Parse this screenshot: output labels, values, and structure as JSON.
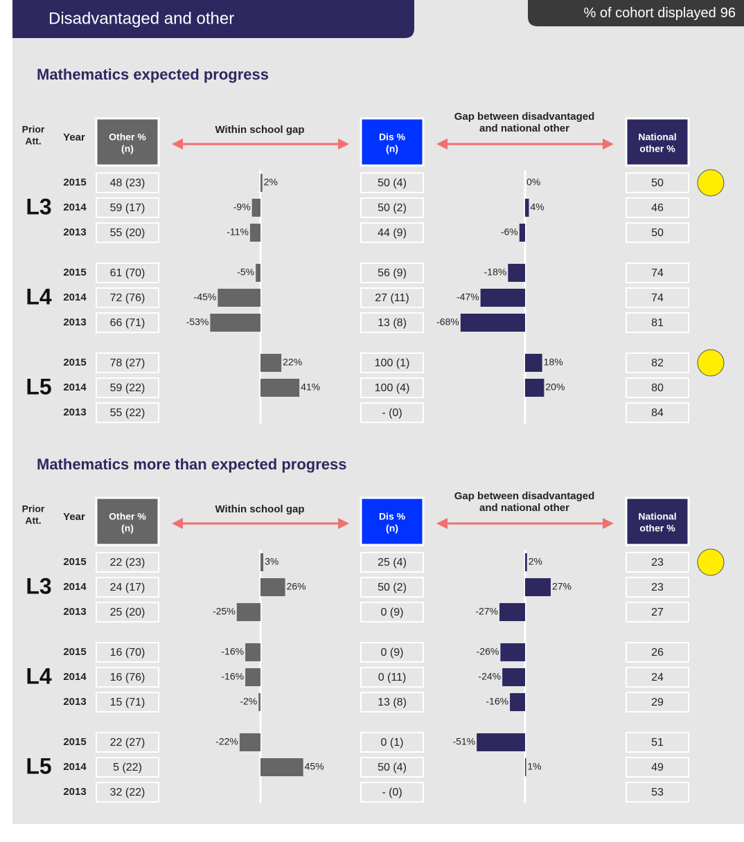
{
  "header": {
    "title": "Disadvantaged and other",
    "cohort_label": "% of cohort displayed",
    "cohort_value": 96
  },
  "columns": {
    "prior": [
      "Prior",
      "Att."
    ],
    "year": "Year",
    "other": [
      "Other %",
      "(n)"
    ],
    "within_gap": "Within school gap",
    "dis": [
      "Dis %",
      "(n)"
    ],
    "national_gap": [
      "Gap between disadvantaged",
      "and national other"
    ],
    "national": [
      "National",
      "other %"
    ]
  },
  "sections": [
    {
      "title": "Mathematics expected progress",
      "groups": [
        {
          "label": "L3",
          "rows": [
            {
              "year": 2015,
              "other": "48 (23)",
              "gap": 2,
              "gap_label": "2%",
              "dis": "50 (4)",
              "nat_gap": 0,
              "nat_gap_label": "0%",
              "national": 50,
              "flag": true
            },
            {
              "year": 2014,
              "other": "59 (17)",
              "gap": -9,
              "gap_label": "-9%",
              "dis": "50 (2)",
              "nat_gap": 4,
              "nat_gap_label": "4%",
              "national": 46
            },
            {
              "year": 2013,
              "other": "55 (20)",
              "gap": -11,
              "gap_label": "-11%",
              "dis": "44 (9)",
              "nat_gap": -6,
              "nat_gap_label": "-6%",
              "national": 50
            }
          ]
        },
        {
          "label": "L4",
          "rows": [
            {
              "year": 2015,
              "other": "61 (70)",
              "gap": -5,
              "gap_label": "-5%",
              "dis": "56 (9)",
              "nat_gap": -18,
              "nat_gap_label": "-18%",
              "national": 74
            },
            {
              "year": 2014,
              "other": "72 (76)",
              "gap": -45,
              "gap_label": "-45%",
              "dis": "27 (11)",
              "nat_gap": -47,
              "nat_gap_label": "-47%",
              "national": 74
            },
            {
              "year": 2013,
              "other": "66 (71)",
              "gap": -53,
              "gap_label": "-53%",
              "dis": "13 (8)",
              "nat_gap": -68,
              "nat_gap_label": "-68%",
              "national": 81
            }
          ]
        },
        {
          "label": "L5",
          "rows": [
            {
              "year": 2015,
              "other": "78 (27)",
              "gap": 22,
              "gap_label": "22%",
              "dis": "100 (1)",
              "nat_gap": 18,
              "nat_gap_label": "18%",
              "national": 82,
              "flag": true
            },
            {
              "year": 2014,
              "other": "59 (22)",
              "gap": 41,
              "gap_label": "41%",
              "dis": "100 (4)",
              "nat_gap": 20,
              "nat_gap_label": "20%",
              "national": 80
            },
            {
              "year": 2013,
              "other": "55 (22)",
              "gap": null,
              "dis": "- (0)",
              "nat_gap": null,
              "national": 84
            }
          ]
        }
      ]
    },
    {
      "title": "Mathematics more than expected progress",
      "groups": [
        {
          "label": "L3",
          "rows": [
            {
              "year": 2015,
              "other": "22 (23)",
              "gap": 3,
              "gap_label": "3%",
              "dis": "25 (4)",
              "nat_gap": 2,
              "nat_gap_label": "2%",
              "national": 23,
              "flag": true
            },
            {
              "year": 2014,
              "other": "24 (17)",
              "gap": 26,
              "gap_label": "26%",
              "dis": "50 (2)",
              "nat_gap": 27,
              "nat_gap_label": "27%",
              "national": 23
            },
            {
              "year": 2013,
              "other": "25 (20)",
              "gap": -25,
              "gap_label": "-25%",
              "dis": "0 (9)",
              "nat_gap": -27,
              "nat_gap_label": "-27%",
              "national": 27
            }
          ]
        },
        {
          "label": "L4",
          "rows": [
            {
              "year": 2015,
              "other": "16 (70)",
              "gap": -16,
              "gap_label": "-16%",
              "dis": "0 (9)",
              "nat_gap": -26,
              "nat_gap_label": "-26%",
              "national": 26
            },
            {
              "year": 2014,
              "other": "16 (76)",
              "gap": -16,
              "gap_label": "-16%",
              "dis": "0 (11)",
              "nat_gap": -24,
              "nat_gap_label": "-24%",
              "national": 24
            },
            {
              "year": 2013,
              "other": "15 (71)",
              "gap": -2,
              "gap_label": "-2%",
              "dis": "13 (8)",
              "nat_gap": -16,
              "nat_gap_label": "-16%",
              "national": 29
            }
          ]
        },
        {
          "label": "L5",
          "rows": [
            {
              "year": 2015,
              "other": "22 (27)",
              "gap": -22,
              "gap_label": "-22%",
              "dis": "0 (1)",
              "nat_gap": -51,
              "nat_gap_label": "-51%",
              "national": 51
            },
            {
              "year": 2014,
              "other": "5 (22)",
              "gap": 45,
              "gap_label": "45%",
              "dis": "50 (4)",
              "nat_gap": 1,
              "nat_gap_label": "1%",
              "national": 49
            },
            {
              "year": 2013,
              "other": "32 (22)",
              "gap": null,
              "dis": "- (0)",
              "nat_gap": null,
              "national": 53
            }
          ]
        }
      ]
    }
  ]
}
